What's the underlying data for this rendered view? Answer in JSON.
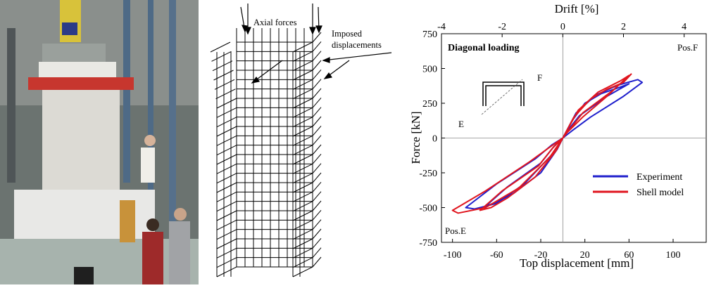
{
  "photo": {
    "description_icon": "lab-test-photo"
  },
  "mesh": {
    "axial_label": "Axial forces",
    "imposed_label_line1": "Imposed",
    "imposed_label_line2": "displacements"
  },
  "chart_data": {
    "type": "line",
    "title": "Diagonal loading",
    "xlabel": "Top displacement [mm]",
    "ylabel": "Force [kN]",
    "x2label": "Drift [%]",
    "xlim": [
      -110,
      130
    ],
    "ylim": [
      -750,
      750
    ],
    "x_ticks": [
      "-100",
      "-60",
      "-20",
      "20",
      "60",
      "100"
    ],
    "y_ticks": [
      "-750",
      "-500",
      "-250",
      "0",
      "250",
      "500",
      "750"
    ],
    "x2_ticks": [
      "-4",
      "-2",
      "0",
      "2",
      "4"
    ],
    "corner_pos": "Pos.F",
    "corner_neg": "Pos.E",
    "inset_F": "F",
    "inset_E": "E",
    "legend_position": "lower-right",
    "series": [
      {
        "name": "Experiment",
        "color": "#1f1fcc",
        "x": [
          0,
          8,
          20,
          35,
          50,
          60,
          40,
          15,
          5,
          0,
          -5,
          -20,
          -45,
          -60,
          -70,
          -50,
          -20,
          -8,
          0,
          12,
          30,
          50,
          68,
          72,
          55,
          25,
          8,
          0,
          -10,
          -35,
          -60,
          -80,
          -88,
          -60,
          -25,
          -10,
          0
        ],
        "y": [
          0,
          120,
          250,
          320,
          360,
          390,
          300,
          160,
          60,
          0,
          -80,
          -250,
          -400,
          -460,
          -490,
          -350,
          -180,
          -60,
          0,
          180,
          310,
          380,
          420,
          400,
          300,
          150,
          50,
          0,
          -120,
          -330,
          -470,
          -510,
          -500,
          -330,
          -150,
          -50,
          0
        ]
      },
      {
        "name": "Shell model",
        "color": "#e0161f",
        "x": [
          0,
          10,
          25,
          40,
          55,
          62,
          45,
          18,
          6,
          0,
          -6,
          -25,
          -50,
          -65,
          -75,
          -55,
          -22,
          -9,
          0,
          14,
          32,
          52,
          60,
          40,
          18,
          4,
          0,
          -12,
          -40,
          -70,
          -95,
          -100,
          -70,
          -30,
          -10,
          0
        ],
        "y": [
          0,
          150,
          280,
          350,
          400,
          460,
          340,
          180,
          60,
          0,
          -90,
          -280,
          -430,
          -500,
          -520,
          -380,
          -200,
          -70,
          0,
          200,
          330,
          410,
          450,
          300,
          150,
          40,
          0,
          -140,
          -360,
          -500,
          -540,
          -520,
          -380,
          -170,
          -55,
          0
        ]
      }
    ]
  }
}
